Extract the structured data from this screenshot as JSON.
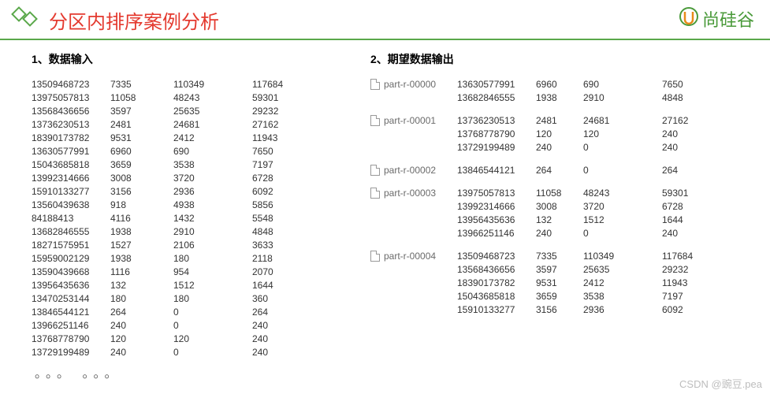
{
  "title": "分区内排序案例分析",
  "brand": "尚硅谷",
  "section1_title": "1、数据输入",
  "section2_title": "2、期望数据输出",
  "input_rows": [
    [
      "13509468723",
      "7335",
      "110349",
      "117684"
    ],
    [
      "13975057813",
      "11058",
      "48243",
      "59301"
    ],
    [
      "13568436656",
      "3597",
      "25635",
      "29232"
    ],
    [
      "13736230513",
      "2481",
      "24681",
      "27162"
    ],
    [
      "18390173782",
      "9531",
      "2412",
      "11943"
    ],
    [
      "13630577991",
      "6960",
      "690",
      "7650"
    ],
    [
      "15043685818",
      "3659",
      "3538",
      "7197"
    ],
    [
      "13992314666",
      "3008",
      "3720",
      "6728"
    ],
    [
      "15910133277",
      "3156",
      "2936",
      "6092"
    ],
    [
      "13560439638",
      "918",
      "4938",
      "5856"
    ],
    [
      "84188413",
      "4116",
      "1432",
      "5548"
    ],
    [
      "13682846555",
      "1938",
      "2910",
      "4848"
    ],
    [
      "18271575951",
      "1527",
      "2106",
      "3633"
    ],
    [
      "15959002129",
      "1938",
      "180",
      "2118"
    ],
    [
      "13590439668",
      "1116",
      "954",
      "2070"
    ],
    [
      "13956435636",
      "132",
      "1512",
      "1644"
    ],
    [
      "13470253144",
      "180",
      "180",
      "360"
    ],
    [
      "13846544121",
      "264",
      "0",
      "264"
    ],
    [
      "13966251146",
      "240",
      "0",
      "240"
    ],
    [
      "13768778790",
      "120",
      "120",
      "240"
    ],
    [
      "13729199489",
      "240",
      "0",
      "240"
    ]
  ],
  "parts": [
    {
      "label": "part-r-00000",
      "rows": [
        [
          "13630577991",
          "6960",
          "690",
          "7650"
        ],
        [
          "13682846555",
          "1938",
          "2910",
          "4848"
        ]
      ]
    },
    {
      "label": "part-r-00001",
      "rows": [
        [
          "13736230513",
          "2481",
          "24681",
          "27162"
        ],
        [
          "13768778790",
          "120",
          "120",
          "240"
        ],
        [
          "13729199489",
          "240",
          "0",
          "240"
        ]
      ]
    },
    {
      "label": "part-r-00002",
      "rows": [
        [
          "13846544121",
          "264",
          "0",
          "264"
        ]
      ]
    },
    {
      "label": "part-r-00003",
      "rows": [
        [
          "13975057813",
          "11058",
          "48243",
          "59301"
        ],
        [
          "13992314666",
          "3008",
          "3720",
          "6728"
        ],
        [
          "13956435636",
          "132",
          "1512",
          "1644"
        ],
        [
          "13966251146",
          "240",
          "0",
          "240"
        ]
      ]
    },
    {
      "label": "part-r-00004",
      "rows": [
        [
          "13509468723",
          "7335",
          "110349",
          "117684"
        ],
        [
          "13568436656",
          "3597",
          "25635",
          "29232"
        ],
        [
          "18390173782",
          "9531",
          "2412",
          "11943"
        ],
        [
          "15043685818",
          "3659",
          "3538",
          "7197"
        ],
        [
          "15910133277",
          "3156",
          "2936",
          "6092"
        ]
      ]
    }
  ],
  "dots": "。。。  。。。",
  "watermark": "CSDN @豌豆.pea"
}
